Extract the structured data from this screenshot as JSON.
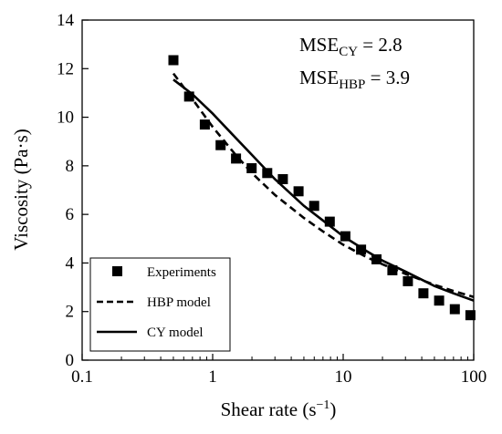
{
  "chart_data": {
    "type": "scatter",
    "xlabel_main": "Shear rate (s",
    "xlabel_sup": "−1",
    "xlabel_end": ")",
    "ylabel": "Viscosity (Pa·s)",
    "xscale": "log",
    "xlim": [
      0.1,
      100
    ],
    "ylim": [
      0,
      14
    ],
    "x_ticks": [
      0.1,
      1,
      10,
      100
    ],
    "x_tick_labels": [
      "0.1",
      "1",
      "10",
      "100"
    ],
    "y_ticks": [
      0,
      2,
      4,
      6,
      8,
      10,
      12,
      14
    ],
    "y_tick_labels": [
      "0",
      "2",
      "4",
      "6",
      "8",
      "10",
      "12",
      "14"
    ],
    "grid": false,
    "legend_position": "bottom-left",
    "annotations": [
      {
        "main": "MSE",
        "sub": "CY",
        "rest": " = 2.8"
      },
      {
        "main": "MSE",
        "sub": "HBP",
        "rest": " = 3.9"
      }
    ],
    "series": [
      {
        "name": "Experiments",
        "style": "square-marker",
        "color": "#000000",
        "x": [
          0.5,
          0.66,
          0.87,
          1.15,
          1.51,
          1.99,
          2.62,
          3.45,
          4.55,
          5.99,
          7.89,
          10.4,
          13.7,
          18.0,
          23.8,
          31.3,
          41.2,
          54.3,
          71.6,
          94.3
        ],
        "y": [
          12.35,
          10.85,
          9.7,
          8.85,
          8.3,
          7.9,
          7.7,
          7.45,
          6.95,
          6.35,
          5.7,
          5.1,
          4.55,
          4.15,
          3.7,
          3.25,
          2.75,
          2.45,
          2.1,
          1.85
        ]
      },
      {
        "name": "HBP model",
        "style": "dashed-line",
        "color": "#000000",
        "x": [
          0.5,
          0.7,
          1.0,
          1.5,
          2.0,
          3.0,
          5.0,
          7.0,
          10.0,
          15.0,
          20.0,
          30.0,
          50.0,
          70.0,
          100.0
        ],
        "y": [
          11.8,
          10.75,
          9.6,
          8.45,
          7.7,
          6.8,
          5.85,
          5.3,
          4.75,
          4.25,
          3.95,
          3.55,
          3.1,
          2.85,
          2.6
        ]
      },
      {
        "name": "CY model",
        "style": "solid-line",
        "color": "#000000",
        "x": [
          0.5,
          0.7,
          1.0,
          1.5,
          2.0,
          3.0,
          5.0,
          7.0,
          10.0,
          15.0,
          20.0,
          30.0,
          50.0,
          70.0,
          100.0
        ],
        "y": [
          11.55,
          10.95,
          10.15,
          9.15,
          8.45,
          7.45,
          6.35,
          5.75,
          5.1,
          4.5,
          4.1,
          3.65,
          3.05,
          2.75,
          2.45
        ]
      }
    ]
  }
}
